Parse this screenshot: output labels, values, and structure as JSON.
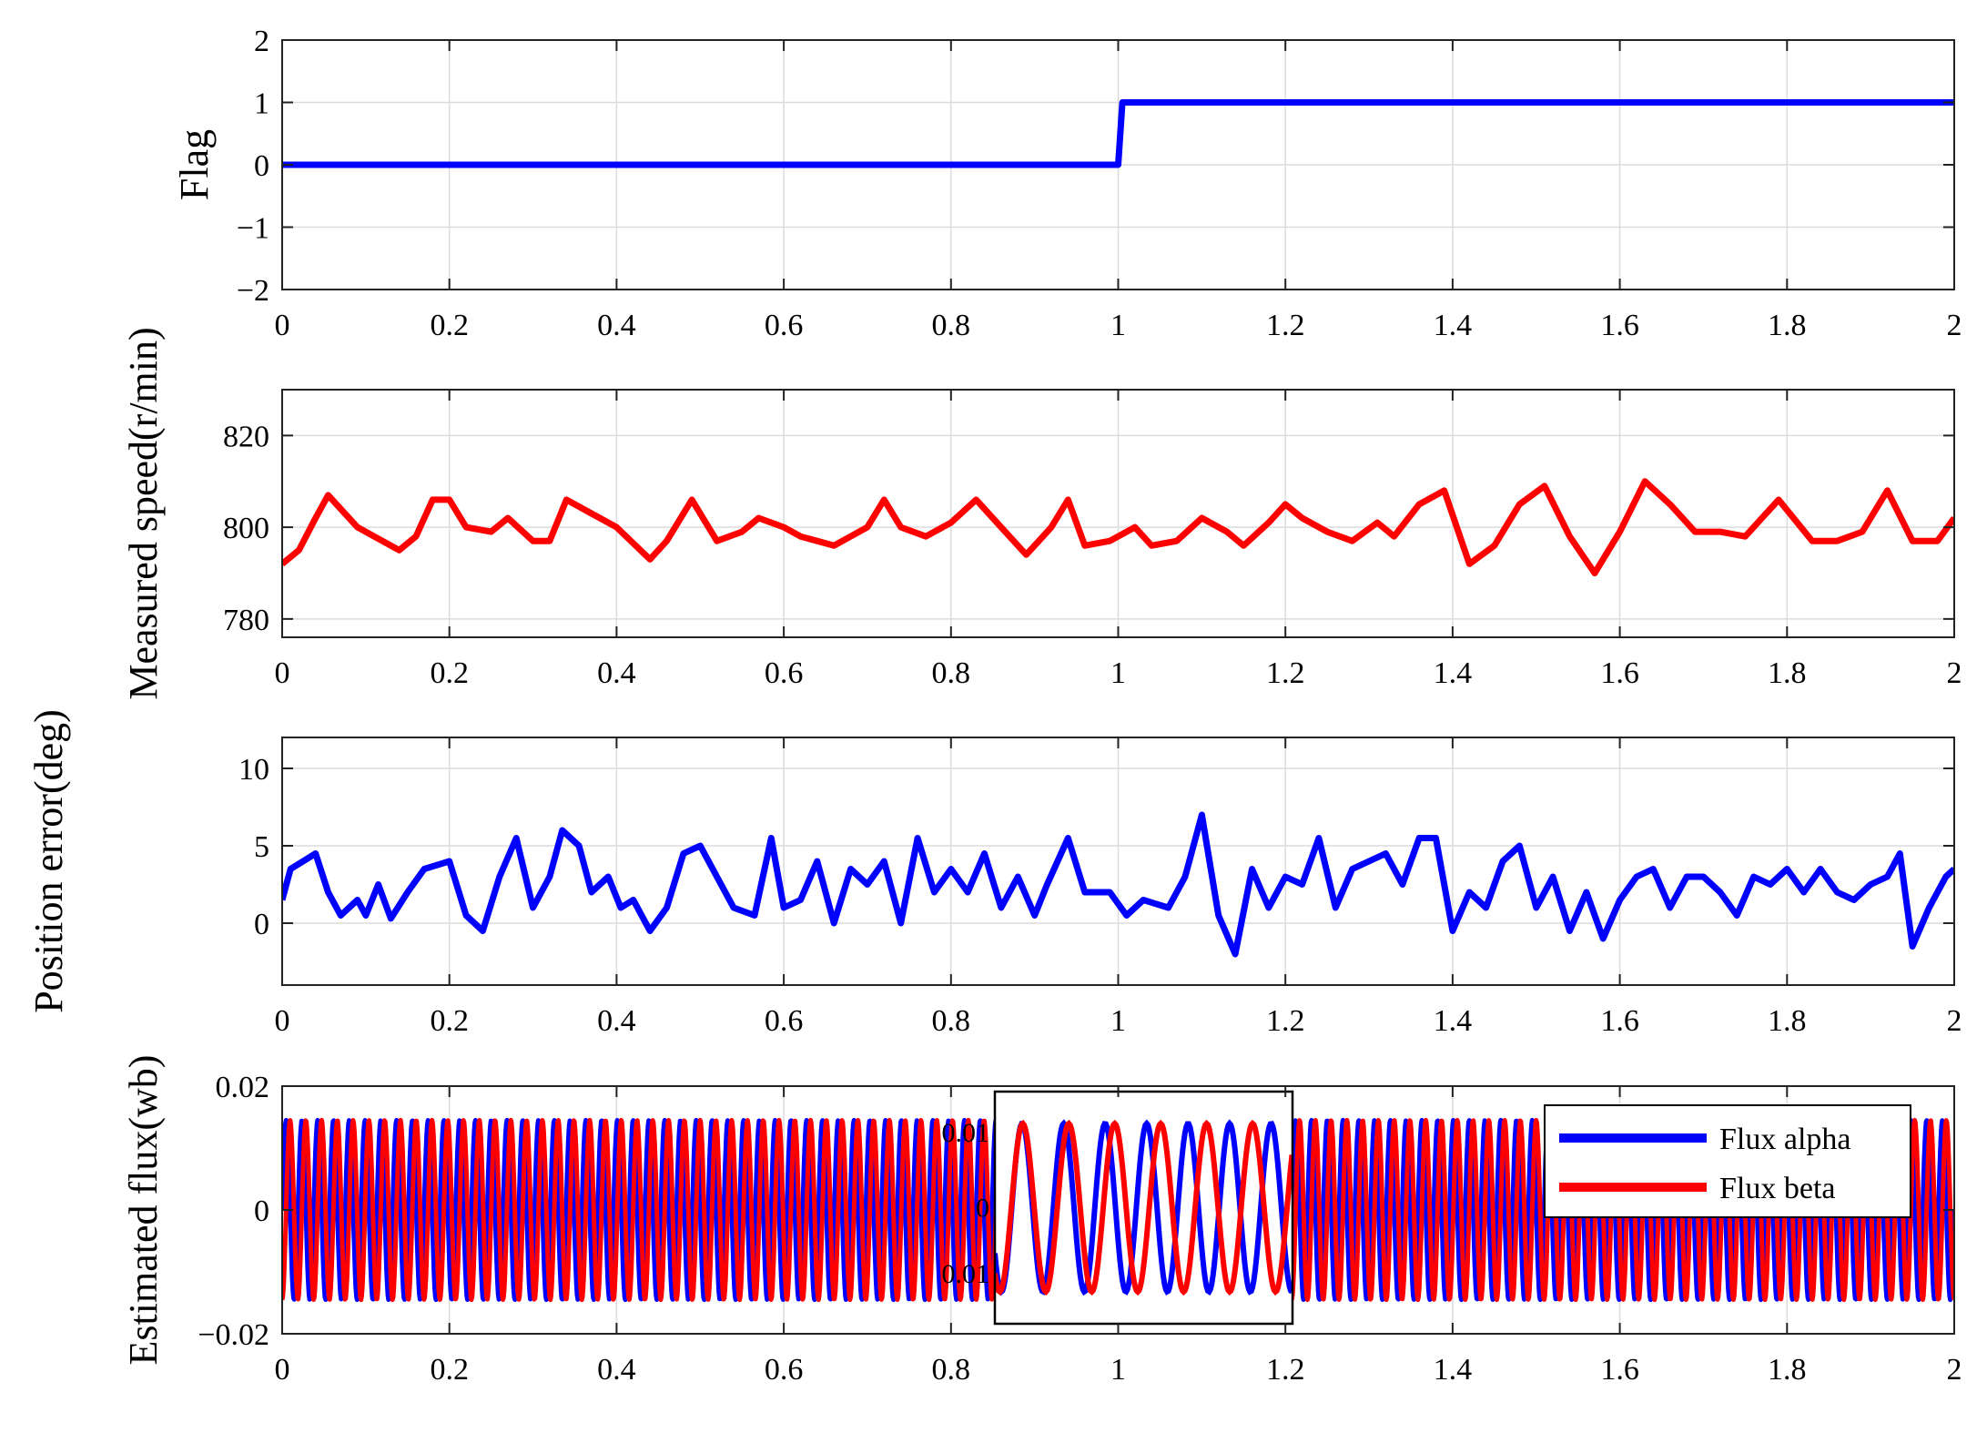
{
  "chart_data": [
    {
      "type": "line",
      "ylabel": "Flag",
      "xlim": [
        0,
        2
      ],
      "ylim": [
        -2,
        2
      ],
      "xticks": [
        0,
        0.2,
        0.4,
        0.6,
        0.8,
        1,
        1.2,
        1.4,
        1.6,
        1.8,
        2
      ],
      "xtick_labels": [
        "0",
        "0.2",
        "0.4",
        "0.6",
        "0.8",
        "1",
        "1.2",
        "1.4",
        "1.6",
        "1.8",
        "2"
      ],
      "yticks": [
        -2,
        -1,
        0,
        1,
        2
      ],
      "ytick_labels": [
        "−2",
        "−1",
        "0",
        "1",
        "2"
      ],
      "grid": true,
      "series": [
        {
          "color": "#0000ff",
          "points": [
            [
              0,
              0
            ],
            [
              1.0,
              0
            ],
            [
              1.005,
              1
            ],
            [
              2,
              1
            ]
          ]
        }
      ]
    },
    {
      "type": "line",
      "ylabel": "Measured speed(r/min)",
      "xlim": [
        0,
        2
      ],
      "ylim": [
        776,
        830
      ],
      "xticks": [
        0,
        0.2,
        0.4,
        0.6,
        0.8,
        1,
        1.2,
        1.4,
        1.6,
        1.8,
        2
      ],
      "xtick_labels": [
        "0",
        "0.2",
        "0.4",
        "0.6",
        "0.8",
        "1",
        "1.2",
        "1.4",
        "1.6",
        "1.8",
        "2"
      ],
      "yticks": [
        780,
        800,
        820
      ],
      "ytick_labels": [
        "780",
        "800",
        "820"
      ],
      "grid": true,
      "series": [
        {
          "color": "#ff0000",
          "points": [
            [
              0,
              792
            ],
            [
              0.02,
              795
            ],
            [
              0.04,
              802
            ],
            [
              0.055,
              807
            ],
            [
              0.07,
              804
            ],
            [
              0.09,
              800
            ],
            [
              0.11,
              798
            ],
            [
              0.14,
              795
            ],
            [
              0.16,
              798
            ],
            [
              0.18,
              806
            ],
            [
              0.2,
              806
            ],
            [
              0.22,
              800
            ],
            [
              0.25,
              799
            ],
            [
              0.27,
              802
            ],
            [
              0.3,
              797
            ],
            [
              0.32,
              797
            ],
            [
              0.34,
              806
            ],
            [
              0.37,
              803
            ],
            [
              0.4,
              800
            ],
            [
              0.44,
              793
            ],
            [
              0.46,
              797
            ],
            [
              0.49,
              806
            ],
            [
              0.52,
              797
            ],
            [
              0.55,
              799
            ],
            [
              0.57,
              802
            ],
            [
              0.6,
              800
            ],
            [
              0.62,
              798
            ],
            [
              0.66,
              796
            ],
            [
              0.7,
              800
            ],
            [
              0.72,
              806
            ],
            [
              0.74,
              800
            ],
            [
              0.77,
              798
            ],
            [
              0.8,
              801
            ],
            [
              0.83,
              806
            ],
            [
              0.86,
              800
            ],
            [
              0.89,
              794
            ],
            [
              0.92,
              800
            ],
            [
              0.94,
              806
            ],
            [
              0.96,
              796
            ],
            [
              0.99,
              797
            ],
            [
              1.02,
              800
            ],
            [
              1.04,
              796
            ],
            [
              1.07,
              797
            ],
            [
              1.1,
              802
            ],
            [
              1.13,
              799
            ],
            [
              1.15,
              796
            ],
            [
              1.18,
              801
            ],
            [
              1.2,
              805
            ],
            [
              1.22,
              802
            ],
            [
              1.25,
              799
            ],
            [
              1.28,
              797
            ],
            [
              1.31,
              801
            ],
            [
              1.33,
              798
            ],
            [
              1.36,
              805
            ],
            [
              1.39,
              808
            ],
            [
              1.42,
              792
            ],
            [
              1.45,
              796
            ],
            [
              1.48,
              805
            ],
            [
              1.51,
              809
            ],
            [
              1.54,
              798
            ],
            [
              1.57,
              790
            ],
            [
              1.6,
              799
            ],
            [
              1.63,
              810
            ],
            [
              1.66,
              805
            ],
            [
              1.69,
              799
            ],
            [
              1.72,
              799
            ],
            [
              1.75,
              798
            ],
            [
              1.79,
              806
            ],
            [
              1.83,
              797
            ],
            [
              1.86,
              797
            ],
            [
              1.89,
              799
            ],
            [
              1.92,
              808
            ],
            [
              1.95,
              797
            ],
            [
              1.98,
              797
            ],
            [
              2.0,
              802
            ]
          ]
        }
      ]
    },
    {
      "type": "line",
      "ylabel": "Position error(deg)",
      "xlim": [
        0,
        2
      ],
      "ylim": [
        -4,
        12
      ],
      "xticks": [
        0,
        0.2,
        0.4,
        0.6,
        0.8,
        1,
        1.2,
        1.4,
        1.6,
        1.8,
        2
      ],
      "xtick_labels": [
        "0",
        "0.2",
        "0.4",
        "0.6",
        "0.8",
        "1",
        "1.2",
        "1.4",
        "1.6",
        "1.8",
        "2"
      ],
      "yticks": [
        0,
        5,
        10
      ],
      "ytick_labels": [
        "0",
        "5",
        "10"
      ],
      "grid": true,
      "series": [
        {
          "color": "#0000ff",
          "points": [
            [
              0,
              1.5
            ],
            [
              0.01,
              3.5
            ],
            [
              0.025,
              4
            ],
            [
              0.04,
              4.5
            ],
            [
              0.055,
              2
            ],
            [
              0.07,
              0.5
            ],
            [
              0.09,
              1.5
            ],
            [
              0.1,
              0.5
            ],
            [
              0.115,
              2.5
            ],
            [
              0.13,
              0.3
            ],
            [
              0.15,
              2
            ],
            [
              0.17,
              3.5
            ],
            [
              0.2,
              4
            ],
            [
              0.22,
              0.5
            ],
            [
              0.24,
              -0.5
            ],
            [
              0.26,
              3
            ],
            [
              0.28,
              5.5
            ],
            [
              0.3,
              1
            ],
            [
              0.32,
              3
            ],
            [
              0.335,
              6
            ],
            [
              0.355,
              5
            ],
            [
              0.37,
              2
            ],
            [
              0.39,
              3
            ],
            [
              0.405,
              1
            ],
            [
              0.42,
              1.5
            ],
            [
              0.44,
              -0.5
            ],
            [
              0.46,
              1
            ],
            [
              0.48,
              4.5
            ],
            [
              0.5,
              5
            ],
            [
              0.52,
              3
            ],
            [
              0.54,
              1
            ],
            [
              0.565,
              0.5
            ],
            [
              0.585,
              5.5
            ],
            [
              0.6,
              1
            ],
            [
              0.62,
              1.5
            ],
            [
              0.64,
              4
            ],
            [
              0.66,
              0
            ],
            [
              0.68,
              3.5
            ],
            [
              0.7,
              2.5
            ],
            [
              0.72,
              4
            ],
            [
              0.74,
              0
            ],
            [
              0.76,
              5.5
            ],
            [
              0.78,
              2
            ],
            [
              0.8,
              3.5
            ],
            [
              0.82,
              2
            ],
            [
              0.84,
              4.5
            ],
            [
              0.86,
              1
            ],
            [
              0.88,
              3
            ],
            [
              0.9,
              0.5
            ],
            [
              0.915,
              2.5
            ],
            [
              0.94,
              5.5
            ],
            [
              0.96,
              2
            ],
            [
              0.99,
              2
            ],
            [
              1.01,
              0.5
            ],
            [
              1.03,
              1.5
            ],
            [
              1.06,
              1
            ],
            [
              1.08,
              3
            ],
            [
              1.1,
              7
            ],
            [
              1.12,
              0.5
            ],
            [
              1.14,
              -2
            ],
            [
              1.16,
              3.5
            ],
            [
              1.18,
              1
            ],
            [
              1.2,
              3
            ],
            [
              1.22,
              2.5
            ],
            [
              1.24,
              5.5
            ],
            [
              1.26,
              1
            ],
            [
              1.28,
              3.5
            ],
            [
              1.3,
              4
            ],
            [
              1.32,
              4.5
            ],
            [
              1.34,
              2.5
            ],
            [
              1.36,
              5.5
            ],
            [
              1.38,
              5.5
            ],
            [
              1.4,
              -0.5
            ],
            [
              1.42,
              2
            ],
            [
              1.44,
              1
            ],
            [
              1.46,
              4
            ],
            [
              1.48,
              5
            ],
            [
              1.5,
              1
            ],
            [
              1.52,
              3
            ],
            [
              1.54,
              -0.5
            ],
            [
              1.56,
              2
            ],
            [
              1.58,
              -1
            ],
            [
              1.6,
              1.5
            ],
            [
              1.62,
              3
            ],
            [
              1.64,
              3.5
            ],
            [
              1.66,
              1
            ],
            [
              1.68,
              3
            ],
            [
              1.7,
              3
            ],
            [
              1.72,
              2
            ],
            [
              1.74,
              0.5
            ],
            [
              1.76,
              3
            ],
            [
              1.78,
              2.5
            ],
            [
              1.8,
              3.5
            ],
            [
              1.82,
              2
            ],
            [
              1.84,
              3.5
            ],
            [
              1.86,
              2
            ],
            [
              1.88,
              1.5
            ],
            [
              1.9,
              2.5
            ],
            [
              1.92,
              3
            ],
            [
              1.935,
              4.5
            ],
            [
              1.95,
              -1.5
            ],
            [
              1.97,
              1
            ],
            [
              1.99,
              3
            ],
            [
              2.0,
              3.5
            ]
          ]
        }
      ]
    },
    {
      "type": "line",
      "ylabel": "Estimated flux(wb)",
      "xlim": [
        0,
        2
      ],
      "ylim": [
        -0.02,
        0.02
      ],
      "xticks": [
        0,
        0.2,
        0.4,
        0.6,
        0.8,
        1,
        1.2,
        1.4,
        1.6,
        1.8,
        2
      ],
      "xtick_labels": [
        "0",
        "0.2",
        "0.4",
        "0.6",
        "0.8",
        "1",
        "1.2",
        "1.4",
        "1.6",
        "1.8",
        "2"
      ],
      "yticks": [
        -0.02,
        0,
        0.02
      ],
      "ytick_labels": [
        "−0.02",
        "0",
        "0.02"
      ],
      "grid": true,
      "amplitude": 0.0145,
      "legend": {
        "position": "top-right",
        "entries": [
          {
            "label": "Flux alpha",
            "color": "#0000ff"
          },
          {
            "label": "Flux beta",
            "color": "#ff0000"
          }
        ]
      },
      "series": [
        {
          "name": "Flux alpha",
          "color": "#0000ff"
        },
        {
          "name": "Flux beta",
          "color": "#ff0000"
        }
      ],
      "inset": {
        "xrange": [
          0.855,
          1.205
        ],
        "yrange": [
          -0.02,
          0.02
        ],
        "ytick_labels": [
          "0.01",
          "0",
          "0.01"
        ]
      }
    }
  ]
}
